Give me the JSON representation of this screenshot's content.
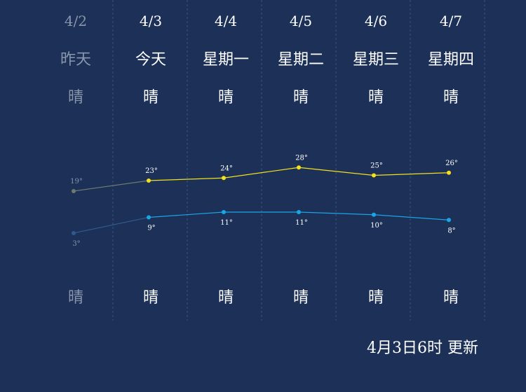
{
  "chart_data": {
    "type": "line",
    "x": [
      "4/2",
      "4/3",
      "4/4",
      "4/5",
      "4/6",
      "4/7"
    ],
    "days": [
      "昨天",
      "今天",
      "星期一",
      "星期二",
      "星期三",
      "星期四"
    ],
    "day_weather": [
      "晴",
      "晴",
      "晴",
      "晴",
      "晴",
      "晴"
    ],
    "night_weather": [
      "晴",
      "晴",
      "晴",
      "晴",
      "晴",
      "晴"
    ],
    "series": [
      {
        "values": [
          19,
          23,
          24,
          28,
          25,
          26
        ],
        "labels": [
          "19°",
          "23°",
          "24°",
          "28°",
          "25°",
          "26°"
        ],
        "color": "#f3e21c",
        "past_color": "#6d7a6e"
      },
      {
        "values": [
          3,
          9,
          11,
          11,
          10,
          8
        ],
        "labels": [
          "3°",
          "9°",
          "11°",
          "11°",
          "10°",
          "8°"
        ],
        "color": "#1aa6e6",
        "past_color": "#2f5a8c"
      }
    ],
    "past_days": 1
  },
  "updated": "4月3日6时 更新",
  "colors": {
    "background": "#1c3058",
    "past_text": "#8a96ab",
    "text": "#ffffff"
  }
}
